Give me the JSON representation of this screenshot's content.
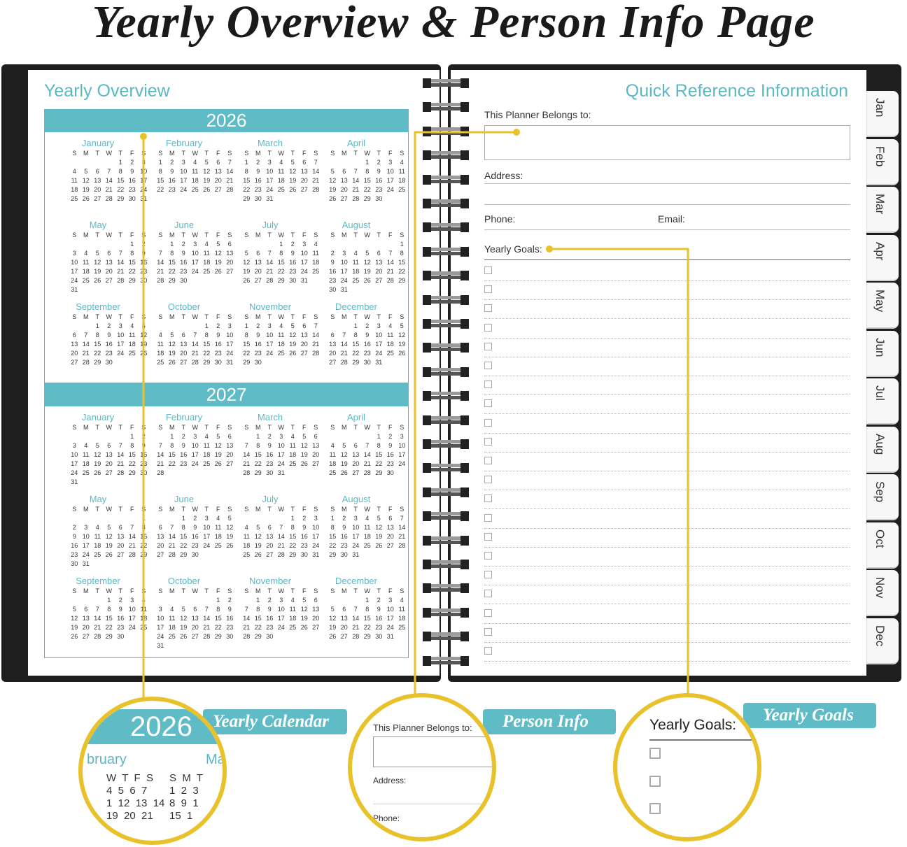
{
  "title": "Yearly Overview & Person Info Page",
  "colors": {
    "accent": "#5fbcc6",
    "callout": "#e9c12a"
  },
  "left_page": {
    "title": "Yearly Overview",
    "weekdays": [
      "S",
      "M",
      "T",
      "W",
      "T",
      "F",
      "S"
    ],
    "years": [
      {
        "year": "2026",
        "months": [
          {
            "name": "January",
            "first_weekday": 4,
            "days": 31
          },
          {
            "name": "February",
            "first_weekday": 0,
            "days": 28
          },
          {
            "name": "March",
            "first_weekday": 0,
            "days": 31
          },
          {
            "name": "April",
            "first_weekday": 3,
            "days": 30
          },
          {
            "name": "May",
            "first_weekday": 5,
            "days": 31
          },
          {
            "name": "June",
            "first_weekday": 1,
            "days": 30
          },
          {
            "name": "July",
            "first_weekday": 3,
            "days": 31
          },
          {
            "name": "August",
            "first_weekday": 6,
            "days": 31
          },
          {
            "name": "September",
            "first_weekday": 2,
            "days": 30
          },
          {
            "name": "October",
            "first_weekday": 4,
            "days": 31
          },
          {
            "name": "November",
            "first_weekday": 0,
            "days": 30
          },
          {
            "name": "December",
            "first_weekday": 2,
            "days": 31
          }
        ]
      },
      {
        "year": "2027",
        "months": [
          {
            "name": "January",
            "first_weekday": 5,
            "days": 31
          },
          {
            "name": "February",
            "first_weekday": 1,
            "days": 28
          },
          {
            "name": "March",
            "first_weekday": 1,
            "days": 31
          },
          {
            "name": "April",
            "first_weekday": 4,
            "days": 30
          },
          {
            "name": "May",
            "first_weekday": 6,
            "days": 31
          },
          {
            "name": "June",
            "first_weekday": 2,
            "days": 30
          },
          {
            "name": "July",
            "first_weekday": 4,
            "days": 31
          },
          {
            "name": "August",
            "first_weekday": 0,
            "days": 31
          },
          {
            "name": "September",
            "first_weekday": 3,
            "days": 30
          },
          {
            "name": "October",
            "first_weekday": 5,
            "days": 31
          },
          {
            "name": "November",
            "first_weekday": 1,
            "days": 30
          },
          {
            "name": "December",
            "first_weekday": 3,
            "days": 31
          }
        ]
      }
    ]
  },
  "right_page": {
    "title": "Quick Reference Information",
    "belongs_label": "This Planner Belongs to:",
    "address_label": "Address:",
    "phone_label": "Phone:",
    "email_label": "Email:",
    "goals_label": "Yearly Goals:",
    "goal_checkbox_count": 21
  },
  "tabs": [
    "Jan",
    "Feb",
    "Mar",
    "Apr",
    "May",
    "Jun",
    "Jul",
    "Aug",
    "Sep",
    "Oct",
    "Nov",
    "Dec"
  ],
  "callouts": [
    {
      "label": "Yearly Calendar",
      "year": "2026",
      "month_a": "bruary",
      "month_b": "Ma",
      "dow": "W  T  F  S",
      "dow_b": "S  M  T",
      "rows": [
        "4  5  6  7",
        "1  12  13  14",
        "19  20  21"
      ],
      "rows_b": [
        "1  2  3",
        "8  9  1",
        "15  1"
      ]
    },
    {
      "label": "Person Info",
      "belongs": "This Planner Belongs to:",
      "address": "Address:",
      "phone": "Phone:"
    },
    {
      "label": "Yearly Goals",
      "goals": "Yearly Goals:"
    }
  ]
}
